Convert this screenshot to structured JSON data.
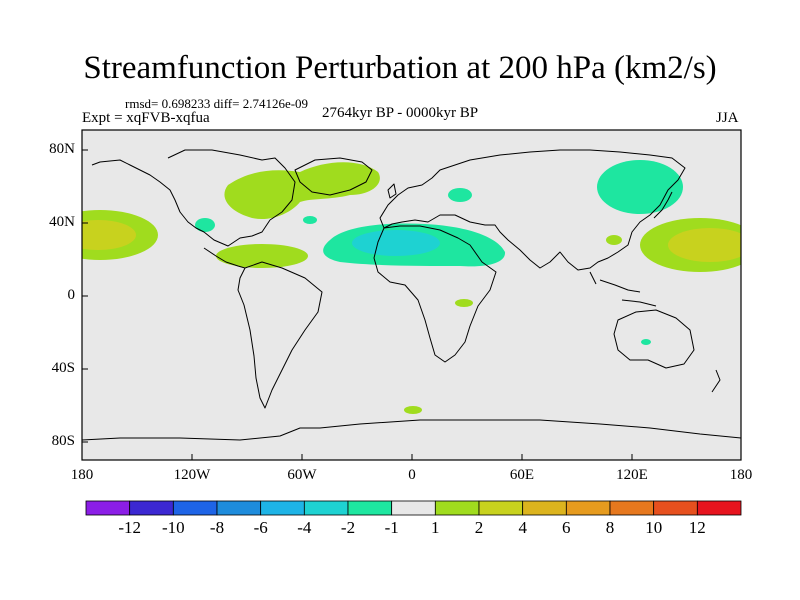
{
  "title": "Streamfunction Perturbation at 200 hPa (km2/s)",
  "stats": "rmsd= 0.698233 diff= 2.74126e-09",
  "experiment": "Expt = xqFVB-xqfua",
  "period": "2764kyr BP - 0000kyr BP",
  "season": "JJA",
  "axes": {
    "lat_ticks": [
      "80N",
      "40N",
      "0",
      "40S",
      "80S"
    ],
    "lon_ticks": [
      "180",
      "120W",
      "60W",
      "0",
      "60E",
      "120E",
      "180"
    ]
  },
  "colorbar": {
    "colors": [
      "#8b1ee6",
      "#3c28d2",
      "#1e64e6",
      "#1e8cdc",
      "#1eb4e6",
      "#1ed2d2",
      "#1ee6a0",
      "#e8e8e8",
      "#a0dc1e",
      "#c8d21e",
      "#dcb41e",
      "#e69b1e",
      "#e6781e",
      "#e6501e",
      "#e6141e"
    ],
    "labels": [
      "-12",
      "-10",
      "-8",
      "-6",
      "-4",
      "-2",
      "-1",
      "1",
      "2",
      "4",
      "6",
      "8",
      "10",
      "12"
    ]
  },
  "colors": {
    "ocean_land_background": "#e8e8e8",
    "coastline": "#000000"
  },
  "anomaly_regions": [
    {
      "level": "2",
      "color": "#a0dc1e"
    },
    {
      "level": "-1",
      "color": "#1ee6a0"
    },
    {
      "level": "-2",
      "color": "#1ed2d2"
    },
    {
      "level": "4",
      "color": "#c8d21e"
    }
  ]
}
